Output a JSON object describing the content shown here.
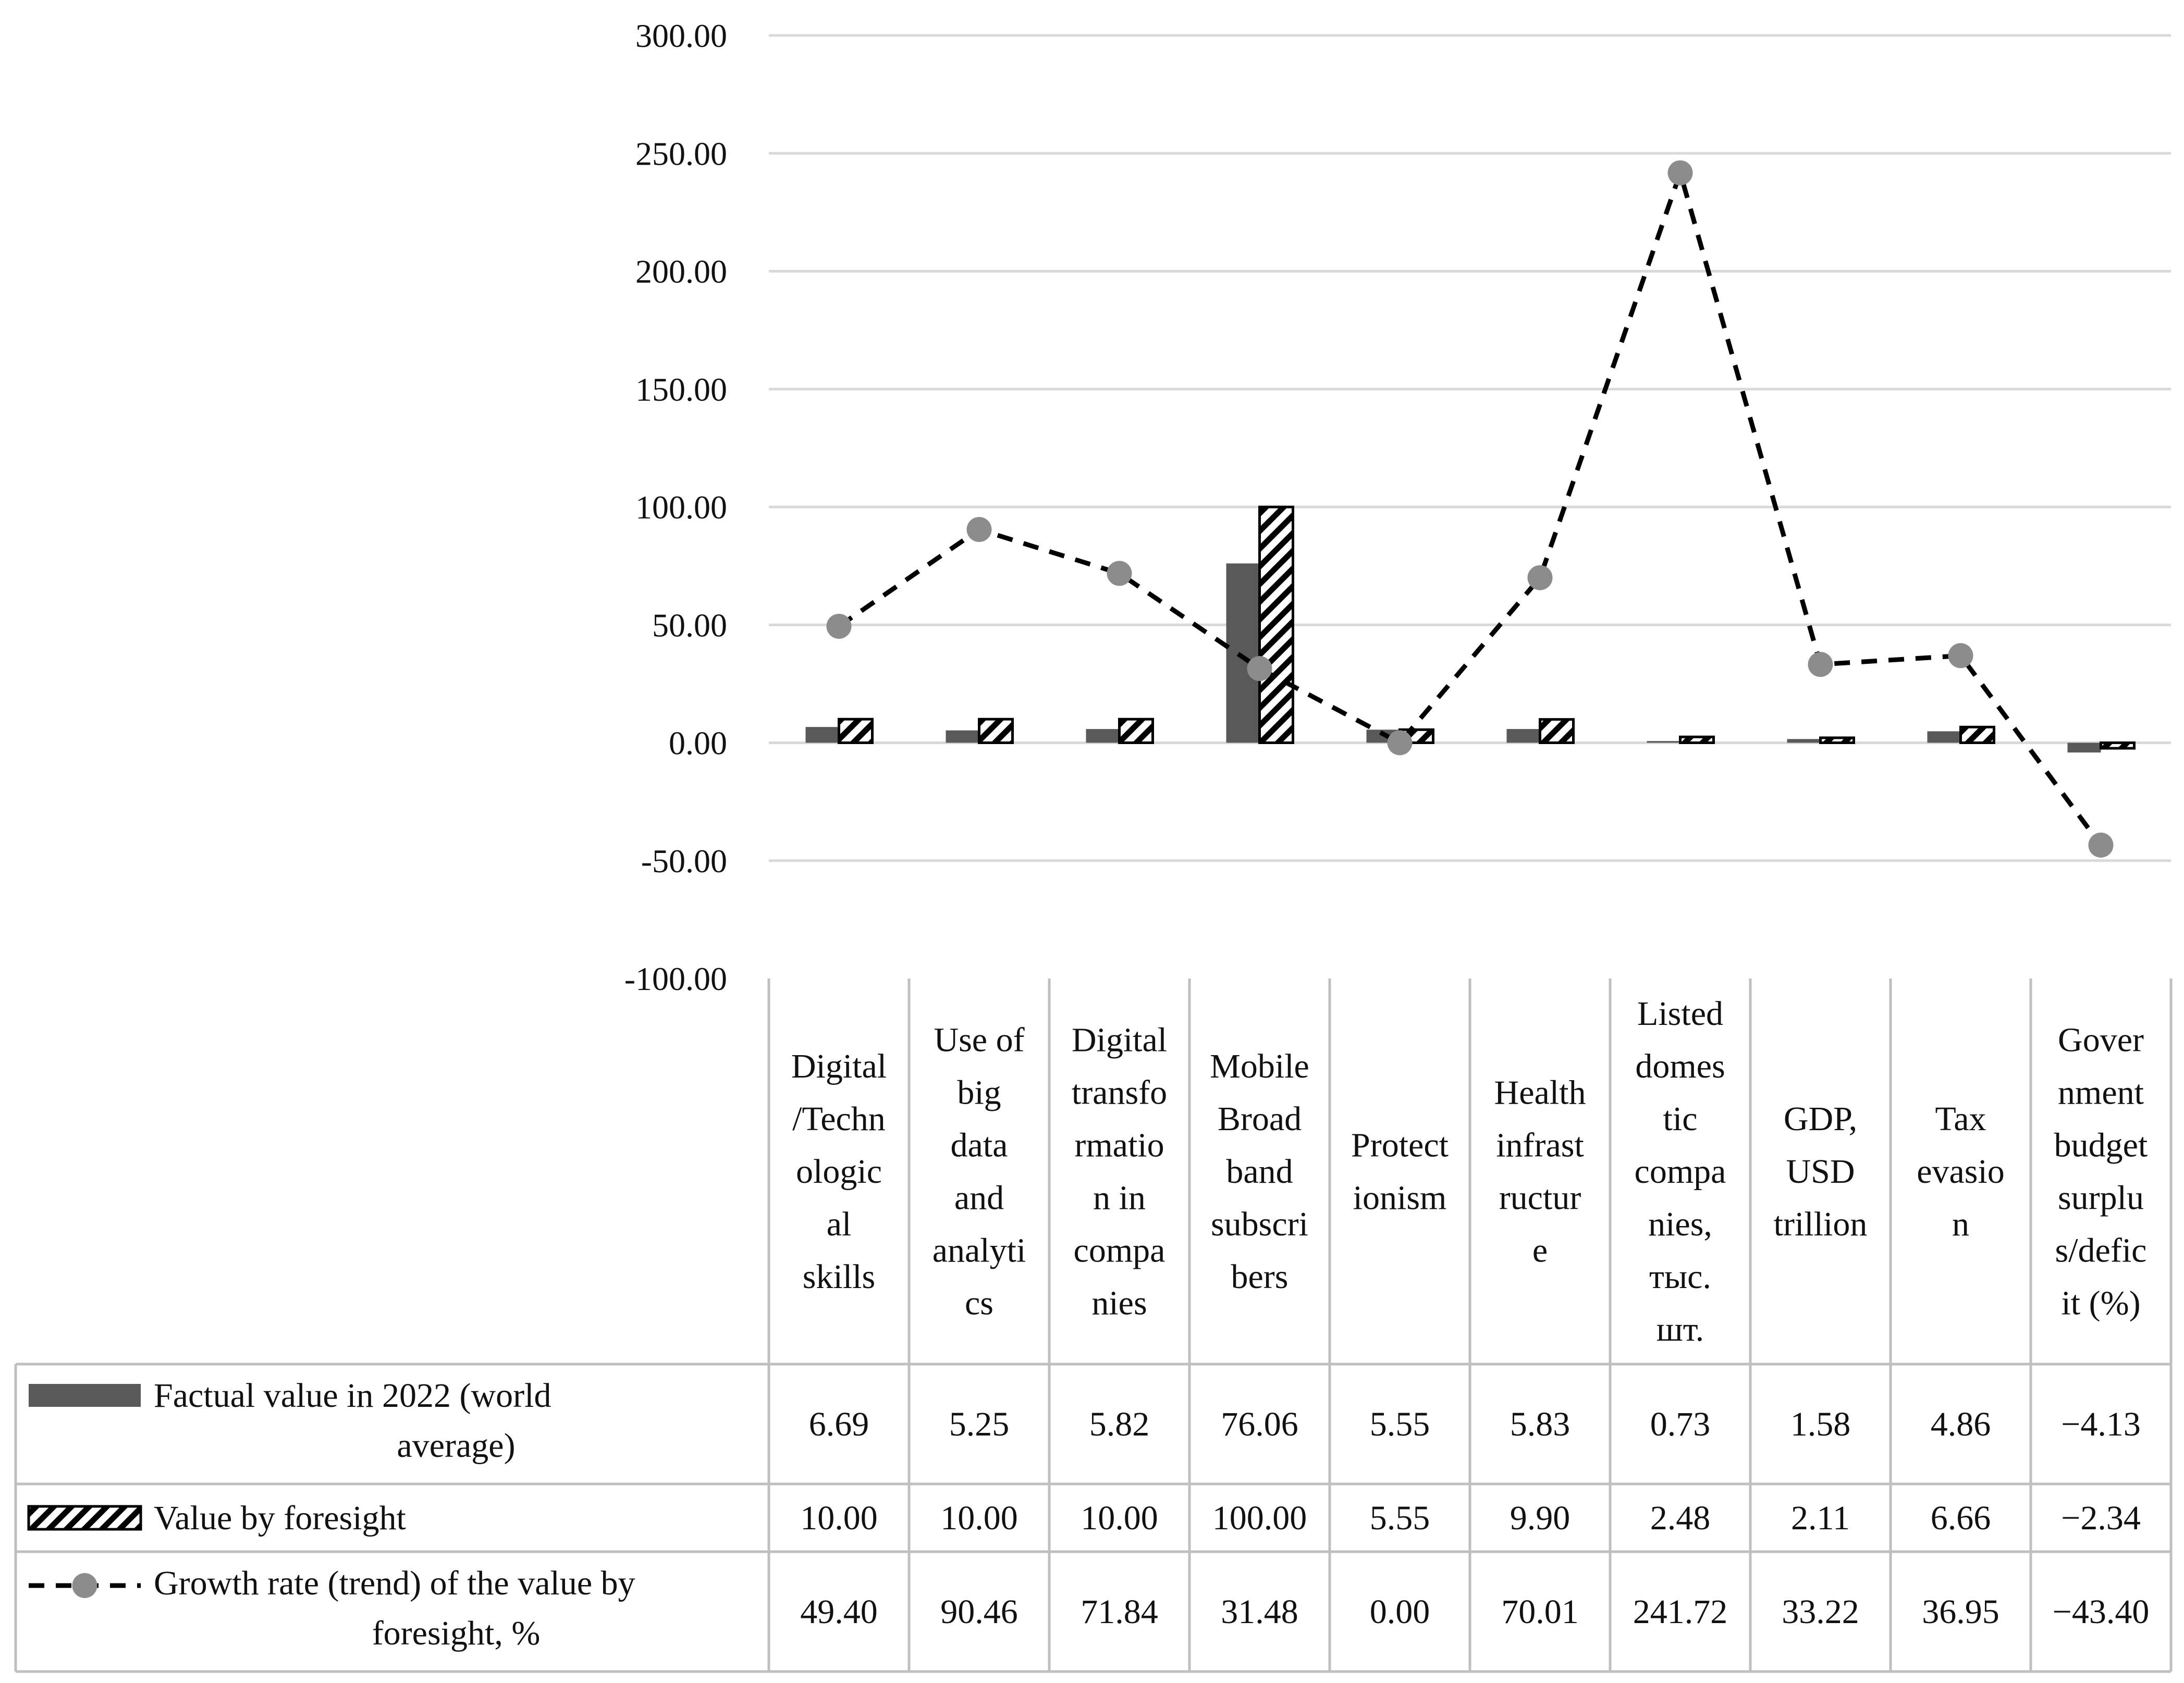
{
  "chart_data": {
    "type": "bar",
    "categories": [
      "Digital /Techn ologic al skills",
      "Use of big data and analyti cs",
      "Digital transfo rmatio n in compa nies",
      "Mobile Broad band subscri bers",
      "Protect ionism",
      "Health infrast ructur e",
      "Listed domes tic compa nies, тыс. шт.",
      "GDP, USD trillion",
      "Tax evasio n",
      "Gover nment budget surplu s/defic it (%)"
    ],
    "category_lines": [
      [
        "Digital",
        "/Techn",
        "ologic",
        "al",
        "skills"
      ],
      [
        "Use of",
        "big",
        "data",
        "and",
        "analyti",
        "cs"
      ],
      [
        "Digital",
        "transfo",
        "rmatio",
        "n in",
        "compa",
        "nies"
      ],
      [
        "Mobile",
        "Broad",
        "band",
        "subscri",
        "bers"
      ],
      [
        "Protect",
        "ionism"
      ],
      [
        "Health",
        "infrast",
        "ructur",
        "e"
      ],
      [
        "Listed",
        "domes",
        "tic",
        "compa",
        "nies,",
        "тыс.",
        "шт."
      ],
      [
        "GDP,",
        "USD",
        "trillion"
      ],
      [
        "Tax",
        "evasio",
        "n"
      ],
      [
        "Gover",
        "nment",
        "budget",
        "surplu",
        "s/defic",
        "it (%)"
      ]
    ],
    "series": [
      {
        "name": "Factual value in 2022 (world average)",
        "name_lines": [
          "Factual value in 2022 (world",
          "average)"
        ],
        "kind": "bar",
        "color": "#595959",
        "values": [
          6.69,
          5.25,
          5.82,
          76.06,
          5.55,
          5.83,
          0.73,
          1.58,
          4.86,
          -4.13
        ],
        "labels": [
          "6.69",
          "5.25",
          "5.82",
          "76.06",
          "5.55",
          "5.83",
          "0.73",
          "1.58",
          "4.86",
          "−4.13"
        ]
      },
      {
        "name": "Value by foresight",
        "name_lines": [
          "Value by foresight"
        ],
        "kind": "bar-hatched",
        "color": "#000000",
        "values": [
          10.0,
          10.0,
          10.0,
          100.0,
          5.55,
          9.9,
          2.48,
          2.11,
          6.66,
          -2.34
        ],
        "labels": [
          "10.00",
          "10.00",
          "10.00",
          "100.00",
          "5.55",
          "9.90",
          "2.48",
          "2.11",
          "6.66",
          "−2.34"
        ]
      },
      {
        "name": "Growth rate (trend) of the value by foresight, %",
        "name_lines": [
          "Growth rate (trend) of the value by",
          "foresight, %"
        ],
        "kind": "line",
        "color": "#000000",
        "marker_color": "#8c8c8c",
        "values": [
          49.4,
          90.46,
          71.84,
          31.48,
          0.0,
          70.01,
          241.72,
          33.22,
          36.95,
          -43.4
        ],
        "labels": [
          "49.40",
          "90.46",
          "71.84",
          "31.48",
          "0.00",
          "70.01",
          "241.72",
          "33.22",
          "36.95",
          "−43.40"
        ]
      }
    ],
    "ylim": [
      -100,
      300
    ],
    "yticks": [
      300,
      250,
      200,
      150,
      100,
      50,
      0,
      -50,
      -100
    ],
    "ytick_labels": [
      "300.00",
      "250.00",
      "200.00",
      "150.00",
      "100.00",
      "50.00",
      "0.00",
      "-50.00",
      "-100.00"
    ],
    "grid": true,
    "legend": "data-table"
  }
}
